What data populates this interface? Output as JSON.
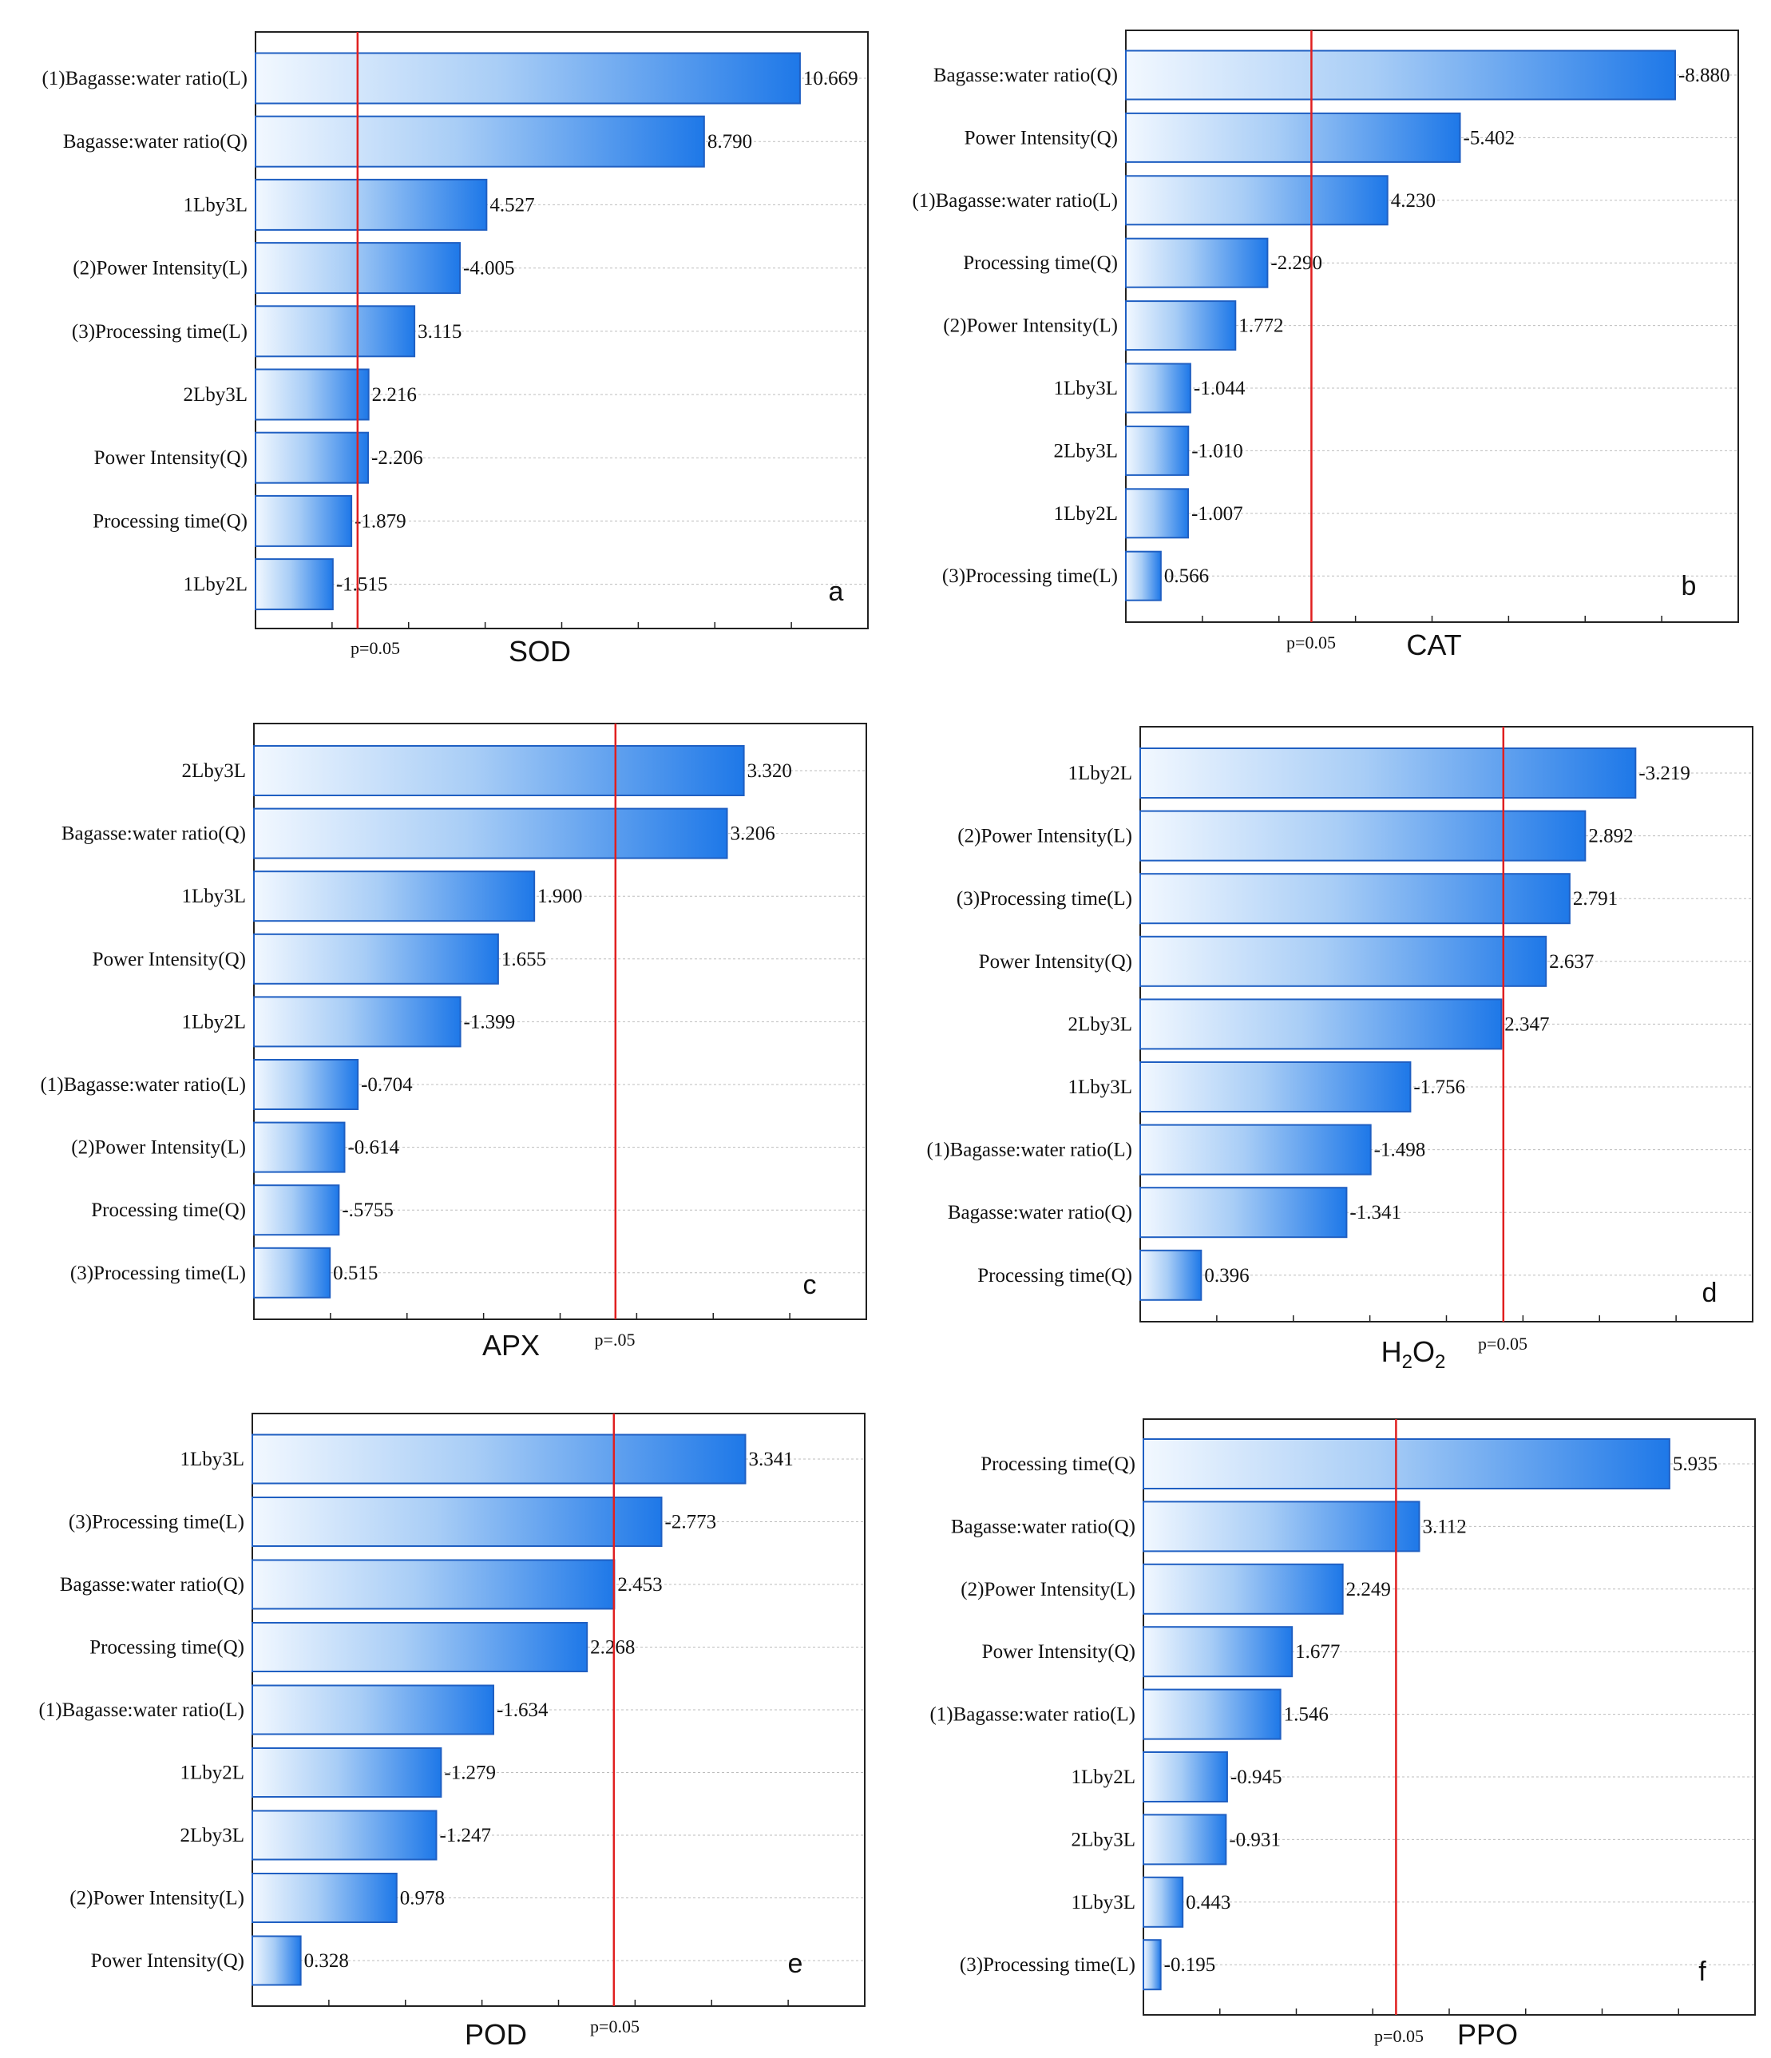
{
  "colors": {
    "bar_light": "#eef6fe",
    "bar_dark": "#1e78e8",
    "bar_border": "#1f5fc2",
    "p_line": "#e02020",
    "frame": "#222222",
    "grid": "#bdbdbd"
  },
  "chart_data": [
    {
      "type": "bar",
      "orientation": "horizontal",
      "panel_letter": "a",
      "title": "SOD",
      "p_label": "p=0.05",
      "p_value_line": 2.0,
      "categories": [
        "(1)Bagasse:water ratio(L)",
        "Bagasse:water ratio(Q)",
        "1Lby3L",
        "(2)Power Intensity(L)",
        "(3)Processing time(L)",
        "2Lby3L",
        "Power Intensity(Q)",
        "Processing time(Q)",
        "1Lby2L"
      ],
      "values": [
        10.669,
        8.79,
        4.527,
        -4.005,
        3.115,
        2.216,
        -2.206,
        -1.879,
        -1.515
      ],
      "value_labels": [
        "10.669",
        "8.790",
        "4.527",
        "-4.005",
        "3.115",
        "2.216",
        "-2.206",
        "-1.879",
        "-1.515"
      ],
      "xlim": [
        0,
        12
      ],
      "xlabel": "",
      "ylabel": ""
    },
    {
      "type": "bar",
      "orientation": "horizontal",
      "panel_letter": "b",
      "title": "CAT",
      "p_label": "p=0.05",
      "p_value_line": 3.0,
      "categories": [
        "Bagasse:water ratio(Q)",
        "Power Intensity(Q)",
        "(1)Bagasse:water ratio(L)",
        "Processing time(Q)",
        "(2)Power Intensity(L)",
        "1Lby3L",
        "2Lby3L",
        "1Lby2L",
        "(3)Processing time(L)"
      ],
      "values": [
        -8.88,
        -5.402,
        4.23,
        -2.29,
        1.772,
        -1.044,
        -1.01,
        -1.007,
        0.566
      ],
      "value_labels": [
        "-8.880",
        "-5.402",
        "4.230",
        "-2.290",
        "1.772",
        "-1.044",
        "-1.010",
        "-1.007",
        "0.566"
      ],
      "xlim": [
        0,
        9.9
      ],
      "xlabel": "",
      "ylabel": ""
    },
    {
      "type": "bar",
      "orientation": "horizontal",
      "panel_letter": "c",
      "title": "APX",
      "p_label": "p=.05",
      "p_value_line": 2.45,
      "categories": [
        "2Lby3L",
        "Bagasse:water ratio(Q)",
        "1Lby3L",
        "Power Intensity(Q)",
        "1Lby2L",
        "(1)Bagasse:water ratio(L)",
        "(2)Power Intensity(L)",
        "Processing time(Q)",
        "(3)Processing time(L)"
      ],
      "values": [
        3.32,
        3.206,
        1.9,
        1.655,
        -1.399,
        -0.704,
        -0.614,
        -0.5755,
        0.515
      ],
      "value_labels": [
        "3.320",
        "3.206",
        "1.900",
        "1.655",
        "-1.399",
        "-0.704",
        "-0.614",
        "-.5755",
        "0.515"
      ],
      "xlim": [
        0,
        4.15
      ],
      "xlabel": "",
      "ylabel": ""
    },
    {
      "type": "bar",
      "orientation": "horizontal",
      "panel_letter": "d",
      "title": "H2O2",
      "p_label": "p=0.05",
      "p_value_line": 2.36,
      "categories": [
        "1Lby2L",
        "(2)Power Intensity(L)",
        "(3)Processing time(L)",
        "Power Intensity(Q)",
        "2Lby3L",
        "1Lby3L",
        "(1)Bagasse:water ratio(L)",
        "Bagasse:water ratio(Q)",
        "Processing time(Q)"
      ],
      "values": [
        -3.219,
        2.892,
        2.791,
        2.637,
        2.347,
        -1.756,
        -1.498,
        -1.341,
        0.396
      ],
      "value_labels": [
        "-3.219",
        "2.892",
        "2.791",
        "2.637",
        "2.347",
        "-1.756",
        "-1.498",
        "-1.341",
        "0.396"
      ],
      "xlim": [
        0,
        3.98
      ],
      "xlabel": "",
      "ylabel": ""
    },
    {
      "type": "bar",
      "orientation": "horizontal",
      "panel_letter": "e",
      "title": "POD",
      "p_label": "p=0.05",
      "p_value_line": 2.45,
      "categories": [
        "1Lby3L",
        "(3)Processing time(L)",
        "Bagasse:water ratio(Q)",
        "Processing time(Q)",
        "(1)Bagasse:water ratio(L)",
        "1Lby2L",
        "2Lby3L",
        "(2)Power Intensity(L)",
        "Power Intensity(Q)"
      ],
      "values": [
        3.341,
        -2.773,
        2.453,
        2.268,
        -1.634,
        -1.279,
        -1.247,
        0.978,
        0.328
      ],
      "value_labels": [
        "3.341",
        "-2.773",
        "2.453",
        "2.268",
        "-1.634",
        "-1.279",
        "-1.247",
        "0.978",
        "0.328"
      ],
      "xlim": [
        0,
        4.15
      ],
      "xlabel": "",
      "ylabel": ""
    },
    {
      "type": "bar",
      "orientation": "horizontal",
      "panel_letter": "f",
      "title": "PPO",
      "p_label": "p=0.05",
      "p_value_line": 2.85,
      "categories": [
        "Processing time(Q)",
        "Bagasse:water ratio(Q)",
        "(2)Power Intensity(L)",
        "Power Intensity(Q)",
        "(1)Bagasse:water ratio(L)",
        "1Lby2L",
        "2Lby3L",
        "1Lby3L",
        "(3)Processing time(L)"
      ],
      "values": [
        5.935,
        3.112,
        2.249,
        1.677,
        1.546,
        -0.945,
        -0.931,
        0.443,
        -0.195
      ],
      "value_labels": [
        "5.935",
        "3.112",
        "2.249",
        "1.677",
        "1.546",
        "-0.945",
        "-0.931",
        "0.443",
        "-0.195"
      ],
      "xlim": [
        0,
        6.9
      ],
      "xlabel": "",
      "ylabel": ""
    }
  ]
}
